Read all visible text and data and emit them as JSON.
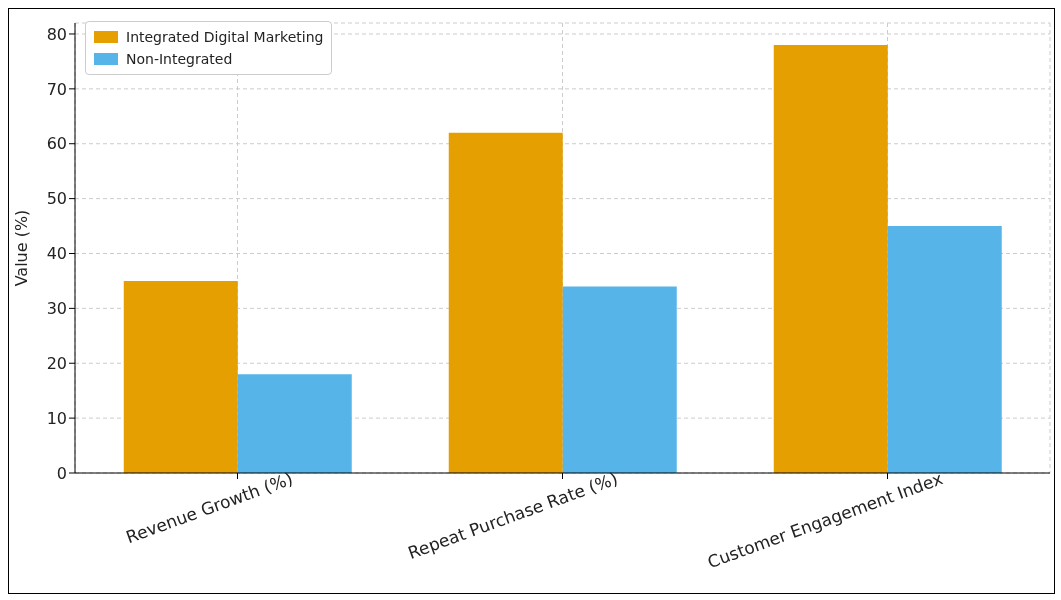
{
  "chart_data": {
    "type": "bar",
    "ylabel": "Value (%)",
    "categories": [
      "Revenue Growth (%)",
      "Repeat Purchase Rate (%)",
      "Customer Engagement Index"
    ],
    "series": [
      {
        "name": "Integrated Digital Marketing",
        "color": "#e69f00",
        "values": [
          35,
          62,
          78
        ]
      },
      {
        "name": "Non-Integrated",
        "color": "#56b4e9",
        "values": [
          18,
          34,
          45
        ]
      }
    ],
    "ylim": [
      0,
      82
    ],
    "yticks": [
      0,
      10,
      20,
      30,
      40,
      50,
      60,
      70,
      80
    ],
    "grid": true,
    "legend": "top left"
  }
}
